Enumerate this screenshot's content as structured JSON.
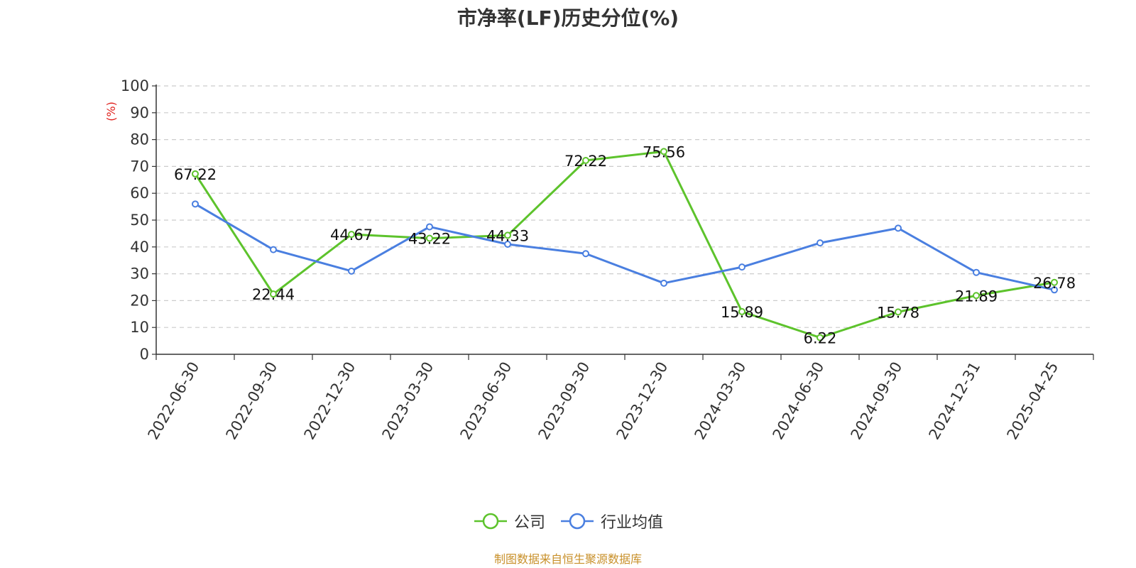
{
  "title": "市净率(LF)历史分位(%)",
  "source": "制图数据来自恒生聚源数据库",
  "chart_data": {
    "type": "line",
    "title": "市净率(LF)历史分位(%)",
    "ylabel": "(%)",
    "xlabel": "",
    "ylim": [
      0,
      100
    ],
    "yticks": [
      0,
      10,
      20,
      30,
      40,
      50,
      60,
      70,
      80,
      90,
      100
    ],
    "grid": true,
    "legend_position": "bottom-center",
    "categories": [
      "2022-06-30",
      "2022-09-30",
      "2022-12-30",
      "2023-03-30",
      "2023-06-30",
      "2023-09-30",
      "2023-12-30",
      "2024-03-30",
      "2024-06-30",
      "2024-09-30",
      "2024-12-31",
      "2025-04-25"
    ],
    "series": [
      {
        "name": "公司",
        "color": "#5dc32c",
        "labeled": true,
        "values": [
          67.22,
          22.44,
          44.67,
          43.22,
          44.33,
          72.22,
          75.56,
          15.89,
          6.22,
          15.78,
          21.89,
          26.78
        ]
      },
      {
        "name": "行业均值",
        "color": "#4a7fe0",
        "labeled": false,
        "values": [
          56,
          39,
          31,
          47.5,
          41,
          37.5,
          26.5,
          32.5,
          41.5,
          47,
          30.5,
          24
        ]
      }
    ]
  }
}
